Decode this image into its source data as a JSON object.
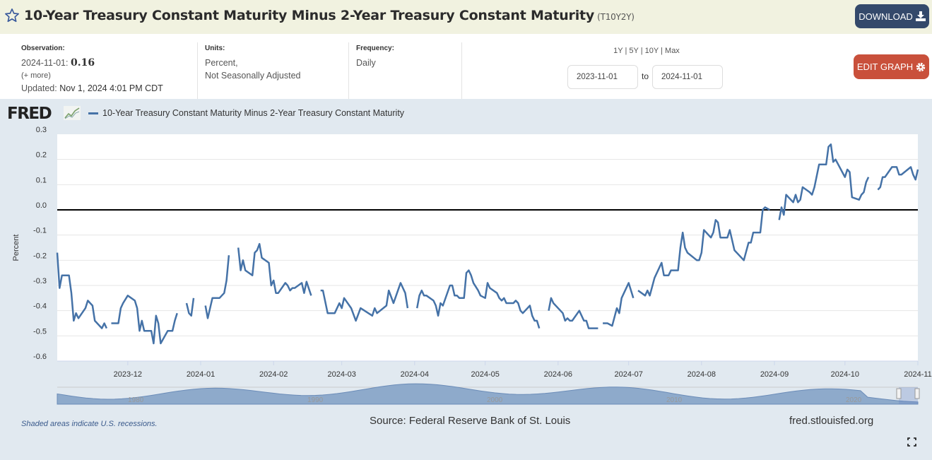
{
  "header": {
    "title": "10-Year Treasury Constant Maturity Minus 2-Year Treasury Constant Maturity",
    "series_id": "(T10Y2Y)",
    "download_label": "DOWNLOAD"
  },
  "info": {
    "observation_label": "Observation:",
    "observation_date": "2024-11-01:",
    "observation_value": "0.16",
    "more": "(+ more)",
    "updated_label": "Updated:",
    "updated_value": "Nov 1, 2024 4:01 PM CDT",
    "units_label": "Units:",
    "units_line1": "Percent,",
    "units_line2": "Not Seasonally Adjusted",
    "frequency_label": "Frequency:",
    "frequency_value": "Daily"
  },
  "range": {
    "presets": [
      "1Y",
      "5Y",
      "10Y",
      "Max"
    ],
    "start": "2023-11-01",
    "to": "to",
    "end": "2024-11-01"
  },
  "edit_label": "EDIT GRAPH",
  "logo": "FRED",
  "footer": {
    "recessions": "Shaded areas indicate U.S. recessions.",
    "source": "Source: Federal Reserve Bank of St. Louis",
    "url": "fred.stlouisfed.org"
  },
  "navigator": {
    "year_labels": [
      "1980",
      "1990",
      "2000",
      "2010",
      "2020"
    ]
  },
  "colors": {
    "line": "#4572a7",
    "download": "#34496b",
    "edit": "#c9503b",
    "header": "#f1f2e0",
    "chart_bg": "#e1e9f0"
  },
  "chart_data": {
    "type": "line",
    "title": "10-Year Treasury Constant Maturity Minus 2-Year Treasury Constant Maturity",
    "xlabel": "",
    "ylabel": "Percent",
    "x_start": "2023-11-01",
    "x_unit": "days since 2023-11-01",
    "xlim": [
      0,
      366
    ],
    "ylim": [
      -0.6,
      0.3
    ],
    "yticks": [
      0.3,
      0.2,
      0.1,
      0.0,
      -0.1,
      -0.2,
      -0.3,
      -0.4,
      -0.5,
      -0.6
    ],
    "ytick_labels": [
      "0.3",
      "0.2",
      "0.1",
      "0.0",
      "-0.1",
      "-0.2",
      "-0.3",
      "-0.4",
      "-0.5",
      "-0.6"
    ],
    "xticks": [
      {
        "label": "2023-12",
        "day": 30
      },
      {
        "label": "2024-01",
        "day": 61
      },
      {
        "label": "2024-02",
        "day": 92
      },
      {
        "label": "2024-03",
        "day": 121
      },
      {
        "label": "2024-04",
        "day": 152
      },
      {
        "label": "2024-05",
        "day": 182
      },
      {
        "label": "2024-06",
        "day": 213
      },
      {
        "label": "2024-07",
        "day": 243
      },
      {
        "label": "2024-08",
        "day": 274
      },
      {
        "label": "2024-09",
        "day": 305
      },
      {
        "label": "2024-10",
        "day": 335
      },
      {
        "label": "2024-11",
        "day": 366
      }
    ],
    "zero_line": 0,
    "grid": true,
    "legend": "top-left",
    "series": [
      {
        "name": "10-Year Treasury Constant Maturity Minus 2-Year Treasury Constant Maturity",
        "points": [
          [
            0,
            -0.17
          ],
          [
            1,
            -0.31
          ],
          [
            2,
            -0.26
          ],
          [
            5,
            -0.26
          ],
          [
            6,
            -0.33
          ],
          [
            7,
            -0.44
          ],
          [
            8,
            -0.41
          ],
          [
            9,
            -0.43
          ],
          [
            12,
            -0.39
          ],
          [
            13,
            -0.36
          ],
          [
            15,
            -0.38
          ],
          [
            16,
            -0.44
          ],
          [
            19,
            -0.47
          ],
          [
            20,
            -0.45
          ],
          [
            21,
            -0.47
          ],
          [
            22,
            null
          ],
          [
            23,
            -0.45
          ],
          [
            26,
            -0.45
          ],
          [
            27,
            -0.39
          ],
          [
            28,
            -0.37
          ],
          [
            30,
            -0.34
          ],
          [
            33,
            -0.36
          ],
          [
            34,
            -0.39
          ],
          [
            35,
            -0.48
          ],
          [
            36,
            -0.44
          ],
          [
            37,
            -0.48
          ],
          [
            40,
            -0.48
          ],
          [
            41,
            -0.53
          ],
          [
            42,
            -0.42
          ],
          [
            43,
            -0.45
          ],
          [
            44,
            -0.53
          ],
          [
            47,
            -0.48
          ],
          [
            49,
            -0.48
          ],
          [
            50,
            -0.44
          ],
          [
            51,
            -0.41
          ],
          [
            54,
            null
          ],
          [
            55,
            -0.37
          ],
          [
            56,
            -0.41
          ],
          [
            57,
            -0.42
          ],
          [
            58,
            -0.35
          ],
          [
            61,
            null
          ],
          [
            63,
            -0.38
          ],
          [
            64,
            -0.43
          ],
          [
            65,
            -0.39
          ],
          [
            66,
            -0.35
          ],
          [
            69,
            -0.35
          ],
          [
            71,
            -0.33
          ],
          [
            72,
            -0.28
          ],
          [
            73,
            -0.18
          ],
          [
            75,
            null
          ],
          [
            77,
            -0.15
          ],
          [
            78,
            -0.24
          ],
          [
            79,
            -0.2
          ],
          [
            80,
            -0.24
          ],
          [
            83,
            -0.26
          ],
          [
            84,
            -0.17
          ],
          [
            85,
            -0.16
          ],
          [
            86,
            -0.135
          ],
          [
            87,
            -0.19
          ],
          [
            90,
            -0.21
          ],
          [
            91,
            -0.3
          ],
          [
            92,
            -0.28
          ],
          [
            93,
            -0.33
          ],
          [
            94,
            -0.33
          ],
          [
            97,
            -0.29
          ],
          [
            98,
            -0.3
          ],
          [
            99,
            -0.32
          ],
          [
            100,
            -0.31
          ],
          [
            101,
            -0.31
          ],
          [
            104,
            -0.29
          ],
          [
            105,
            -0.33
          ],
          [
            106,
            -0.285
          ],
          [
            108,
            -0.34
          ],
          [
            110,
            null
          ],
          [
            112,
            -0.32
          ],
          [
            113,
            -0.32
          ],
          [
            115,
            -0.41
          ],
          [
            118,
            -0.41
          ],
          [
            120,
            -0.37
          ],
          [
            121,
            -0.39
          ],
          [
            122,
            -0.35
          ],
          [
            125,
            -0.39
          ],
          [
            127,
            -0.44
          ],
          [
            129,
            -0.39
          ],
          [
            134,
            -0.42
          ],
          [
            135,
            -0.39
          ],
          [
            136,
            -0.41
          ],
          [
            140,
            -0.38
          ],
          [
            141,
            -0.32
          ],
          [
            143,
            -0.37
          ],
          [
            146,
            -0.29
          ],
          [
            148,
            -0.33
          ],
          [
            149,
            -0.39
          ],
          [
            151,
            null
          ],
          [
            153,
            -0.39
          ],
          [
            154,
            -0.34
          ],
          [
            155,
            -0.32
          ],
          [
            156,
            -0.34
          ],
          [
            157,
            -0.34
          ],
          [
            160,
            -0.36
          ],
          [
            161,
            -0.38
          ],
          [
            162,
            -0.42
          ],
          [
            163,
            -0.37
          ],
          [
            164,
            -0.38
          ],
          [
            167,
            -0.3
          ],
          [
            168,
            -0.3
          ],
          [
            169,
            -0.34
          ],
          [
            170,
            -0.34
          ],
          [
            171,
            -0.35
          ],
          [
            173,
            -0.35
          ],
          [
            174,
            -0.25
          ],
          [
            175,
            -0.24
          ],
          [
            176,
            -0.26
          ],
          [
            177,
            -0.29
          ],
          [
            179,
            -0.32
          ],
          [
            180,
            -0.34
          ],
          [
            182,
            -0.35
          ],
          [
            183,
            -0.29
          ],
          [
            184,
            -0.31
          ],
          [
            187,
            -0.33
          ],
          [
            188,
            -0.35
          ],
          [
            189,
            -0.36
          ],
          [
            190,
            -0.35
          ],
          [
            191,
            -0.37
          ],
          [
            194,
            -0.37
          ],
          [
            195,
            -0.36
          ],
          [
            196,
            -0.37
          ],
          [
            197,
            -0.4
          ],
          [
            198,
            -0.41
          ],
          [
            201,
            -0.38
          ],
          [
            202,
            -0.42
          ],
          [
            203,
            -0.44
          ],
          [
            204,
            -0.44
          ],
          [
            205,
            -0.47
          ],
          [
            208,
            null
          ],
          [
            209,
            -0.4
          ],
          [
            210,
            -0.35
          ],
          [
            211,
            -0.37
          ],
          [
            214,
            -0.4
          ],
          [
            215,
            -0.41
          ],
          [
            216,
            -0.44
          ],
          [
            217,
            -0.43
          ],
          [
            218,
            -0.44
          ],
          [
            219,
            -0.44
          ],
          [
            222,
            -0.4
          ],
          [
            224,
            -0.44
          ],
          [
            225,
            -0.44
          ],
          [
            226,
            -0.47
          ],
          [
            230,
            -0.47
          ],
          [
            231,
            null
          ],
          [
            232,
            -0.45
          ],
          [
            234,
            -0.45
          ],
          [
            236,
            -0.46
          ],
          [
            238,
            -0.39
          ],
          [
            239,
            -0.41
          ],
          [
            240,
            -0.35
          ],
          [
            243,
            -0.29
          ],
          [
            245,
            -0.35
          ],
          [
            246,
            null
          ],
          [
            247,
            -0.32
          ],
          [
            250,
            -0.34
          ],
          [
            251,
            -0.32
          ],
          [
            252,
            -0.34
          ],
          [
            254,
            -0.27
          ],
          [
            257,
            -0.21
          ],
          [
            258,
            -0.26
          ],
          [
            260,
            -0.26
          ],
          [
            261,
            -0.24
          ],
          [
            264,
            -0.24
          ],
          [
            265,
            -0.15
          ],
          [
            266,
            -0.09
          ],
          [
            267,
            -0.15
          ],
          [
            268,
            -0.17
          ],
          [
            272,
            -0.2
          ],
          [
            273,
            -0.2
          ],
          [
            274,
            -0.17
          ],
          [
            275,
            -0.08
          ],
          [
            278,
            -0.11
          ],
          [
            279,
            -0.09
          ],
          [
            280,
            -0.04
          ],
          [
            281,
            -0.05
          ],
          [
            282,
            -0.11
          ],
          [
            285,
            -0.11
          ],
          [
            286,
            -0.08
          ],
          [
            288,
            -0.16
          ],
          [
            292,
            -0.2
          ],
          [
            294,
            -0.13
          ],
          [
            295,
            -0.13
          ],
          [
            296,
            -0.09
          ],
          [
            299,
            -0.09
          ],
          [
            300,
            0.0
          ],
          [
            301,
            0.01
          ],
          [
            303,
            0.0
          ],
          [
            306,
            null
          ],
          [
            307,
            -0.04
          ],
          [
            308,
            0.01
          ],
          [
            309,
            -0.02
          ],
          [
            310,
            0.06
          ],
          [
            313,
            0.03
          ],
          [
            314,
            0.06
          ],
          [
            315,
            0.03
          ],
          [
            316,
            0.04
          ],
          [
            317,
            0.09
          ],
          [
            320,
            0.07
          ],
          [
            321,
            0.06
          ],
          [
            322,
            0.09
          ],
          [
            324,
            0.18
          ],
          [
            327,
            0.18
          ],
          [
            328,
            0.25
          ],
          [
            329,
            0.26
          ],
          [
            330,
            0.19
          ],
          [
            331,
            0.2
          ],
          [
            335,
            0.13
          ],
          [
            336,
            0.16
          ],
          [
            337,
            0.15
          ],
          [
            338,
            0.05
          ],
          [
            341,
            0.04
          ],
          [
            342,
            0.06
          ],
          [
            343,
            0.07
          ],
          [
            344,
            0.11
          ],
          [
            345,
            0.13
          ],
          [
            348,
            null
          ],
          [
            349,
            0.08
          ],
          [
            350,
            0.09
          ],
          [
            351,
            0.13
          ],
          [
            352,
            0.13
          ],
          [
            355,
            0.17
          ],
          [
            357,
            0.17
          ],
          [
            358,
            0.14
          ],
          [
            359,
            0.14
          ],
          [
            363,
            0.17
          ],
          [
            364,
            0.14
          ],
          [
            365,
            0.12
          ],
          [
            366,
            0.16
          ]
        ]
      }
    ]
  }
}
